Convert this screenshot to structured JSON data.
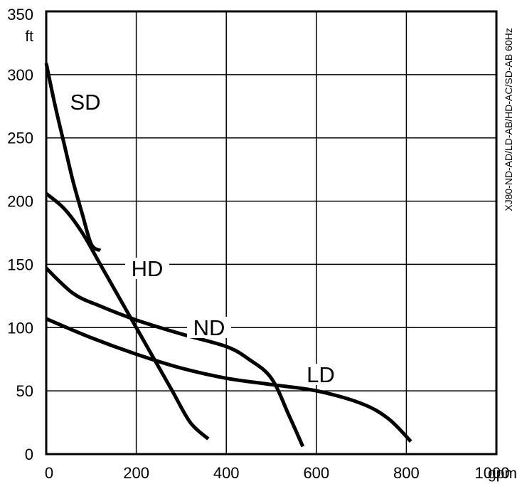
{
  "chart_data": {
    "type": "line",
    "title": "",
    "side_label": "XJ80-ND-AD/LD-AB/HD-AC/SD-AB 60Hz",
    "xlabel": "gpm",
    "ylabel": "ft",
    "xlim": [
      0,
      1000
    ],
    "ylim": [
      0,
      350
    ],
    "x_ticks": [
      {
        "v": 0,
        "label": "0"
      },
      {
        "v": 200,
        "label": "200"
      },
      {
        "v": 400,
        "label": "400"
      },
      {
        "v": 600,
        "label": "600"
      },
      {
        "v": 800,
        "label": "800"
      },
      {
        "v": 1000,
        "label": "1000"
      }
    ],
    "y_ticks": [
      {
        "v": 0,
        "label": "0"
      },
      {
        "v": 50,
        "label": "50"
      },
      {
        "v": 100,
        "label": "100"
      },
      {
        "v": 150,
        "label": "150"
      },
      {
        "v": 200,
        "label": "200"
      },
      {
        "v": 250,
        "label": "250"
      },
      {
        "v": 300,
        "label": "300"
      },
      {
        "v": 350,
        "label": "350"
      }
    ],
    "grid": true,
    "series": [
      {
        "name": "SD",
        "points": [
          [
            0,
            309
          ],
          [
            20,
            275
          ],
          [
            40,
            245
          ],
          [
            60,
            215
          ],
          [
            80,
            190
          ],
          [
            100,
            166
          ],
          [
            120,
            161
          ]
        ]
      },
      {
        "name": "HD",
        "points": [
          [
            0,
            206
          ],
          [
            40,
            194
          ],
          [
            80,
            175
          ],
          [
            120,
            150
          ],
          [
            160,
            125
          ],
          [
            200,
            100
          ],
          [
            240,
            75
          ],
          [
            280,
            50
          ],
          [
            320,
            25
          ],
          [
            360,
            12
          ]
        ]
      },
      {
        "name": "ND",
        "points": [
          [
            0,
            147
          ],
          [
            60,
            127
          ],
          [
            120,
            117
          ],
          [
            200,
            106
          ],
          [
            300,
            95
          ],
          [
            400,
            85
          ],
          [
            450,
            75
          ],
          [
            500,
            60
          ],
          [
            540,
            30
          ],
          [
            570,
            6
          ]
        ]
      },
      {
        "name": "LD",
        "points": [
          [
            0,
            107
          ],
          [
            100,
            92
          ],
          [
            200,
            79
          ],
          [
            300,
            68
          ],
          [
            400,
            60
          ],
          [
            500,
            55
          ],
          [
            600,
            50
          ],
          [
            700,
            40
          ],
          [
            760,
            28
          ],
          [
            810,
            10
          ]
        ]
      }
    ]
  }
}
